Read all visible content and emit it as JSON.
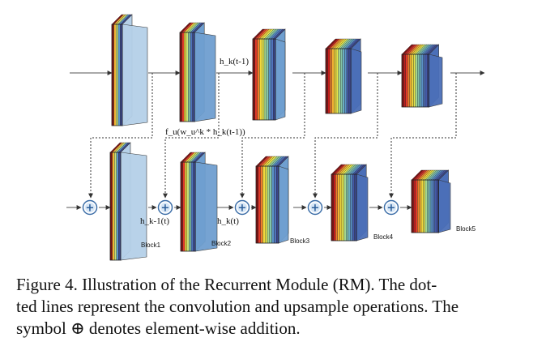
{
  "diagram": {
    "labels": {
      "h_k_t_minus_1": "h_k(t-1)",
      "conv_op": "f_u(w_u^k * h_k(t-1))",
      "h_k_minus_1_t": "h_k-1(t)",
      "h_k_t": "h_k(t)"
    },
    "blocks": [
      "Block1",
      "Block2",
      "Block3",
      "Block4",
      "Block5"
    ],
    "add_symbol": "+",
    "stripe_colors": [
      "#7a1212",
      "#c21c1c",
      "#e0392a",
      "#f07d2b",
      "#f3b334",
      "#f2d83c",
      "#e9ea4e",
      "#c8e276",
      "#a3d68d",
      "#83c5a8",
      "#6aaec0",
      "#5a93c8",
      "#4f74bd",
      "#4459a7",
      "#3b478f"
    ],
    "face_colors": {
      "light": "#b5d0e8",
      "medium": "#6f9fd0",
      "deep": "#4b6fb8"
    }
  },
  "caption": {
    "line1": "Figure 4. Illustration of the Recurrent Module (RM). The dot-",
    "line2": "ted lines represent the convolution and upsample operations. The",
    "line3": "symbol ⊕ denotes element-wise addition."
  }
}
